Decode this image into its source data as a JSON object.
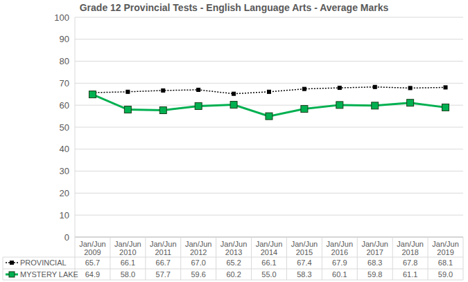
{
  "chart_data": {
    "type": "line",
    "title": "Grade 12 Provincial Tests - English Language Arts - Average Marks",
    "categories": [
      "Jan/Jun 2009",
      "Jan/Jun 2010",
      "Jan/Jun 2011",
      "Jan/Jun 2012",
      "Jan/Jun 2013",
      "Jan/Jun 2014",
      "Jan/Jun 2015",
      "Jan/Jun 2016",
      "Jan/Jun 2017",
      "Jan/Jun 2018",
      "Jan/Jun 2019"
    ],
    "series": [
      {
        "name": "PROVINCIAL",
        "color": "#000000",
        "marker": "square",
        "line_style": "dotted",
        "values": [
          65.7,
          66.1,
          66.7,
          67.0,
          65.2,
          66.1,
          67.4,
          67.9,
          68.3,
          67.8,
          68.1
        ],
        "value_labels": [
          "65.7",
          "66.1",
          "66.7",
          "67.0",
          "65.2",
          "66.1",
          "67.4",
          "67.9",
          "68.3",
          "67.8",
          "68.1"
        ]
      },
      {
        "name": "MYSTERY LAKE",
        "color": "#00b050",
        "marker": "square",
        "line_style": "solid",
        "values": [
          64.9,
          58.0,
          57.7,
          59.6,
          60.2,
          55.0,
          58.3,
          60.1,
          59.8,
          61.1,
          59.0
        ],
        "value_labels": [
          "64.9",
          "58.0",
          "57.7",
          "59.6",
          "60.2",
          "55.0",
          "58.3",
          "60.1",
          "59.8",
          "61.1",
          "59.0"
        ]
      }
    ],
    "ylim": [
      0,
      100
    ],
    "yticks": [
      0,
      10,
      20,
      30,
      40,
      50,
      60,
      70,
      80,
      90,
      100
    ],
    "grid": true
  }
}
